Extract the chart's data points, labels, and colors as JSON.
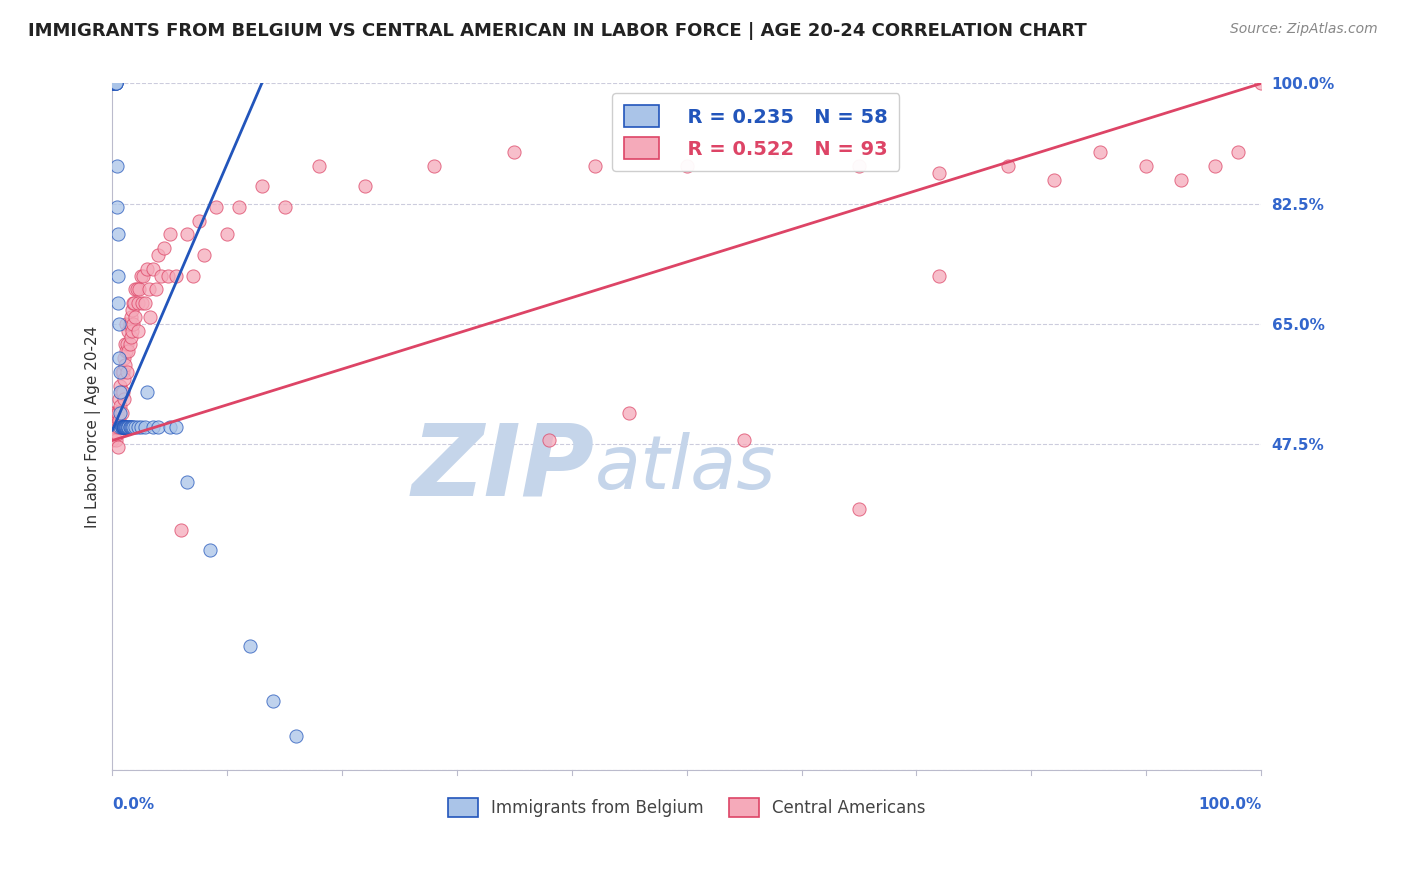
{
  "title": "IMMIGRANTS FROM BELGIUM VS CENTRAL AMERICAN IN LABOR FORCE | AGE 20-24 CORRELATION CHART",
  "source": "Source: ZipAtlas.com",
  "ylabel": "In Labor Force | Age 20-24",
  "watermark": "ZIPatlas",
  "legend_r1": "R = 0.235",
  "legend_n1": "N = 58",
  "legend_r2": "R = 0.522",
  "legend_n2": "N = 93",
  "label1": "Immigrants from Belgium",
  "label2": "Central Americans",
  "color_belgium": "#aac4e8",
  "color_central": "#f5aaba",
  "line_color_belgium": "#2255bb",
  "line_color_central": "#dd4466",
  "bg_color": "#ffffff",
  "grid_color": "#ccccdd",
  "title_fontsize": 13,
  "axis_label_fontsize": 11,
  "tick_fontsize": 11,
  "legend_fontsize": 14,
  "watermark_fontsize": 72,
  "source_fontsize": 10,
  "marker_size": 90,
  "y_ticks": [
    0.0,
    0.475,
    0.65,
    0.825,
    1.0
  ],
  "y_tick_labels": [
    "",
    "47.5%",
    "65.0%",
    "82.5%",
    "100.0%"
  ],
  "xlim": [
    0.0,
    1.0
  ],
  "ylim": [
    0.0,
    1.0
  ],
  "bel_x": [
    0.0,
    0.0,
    0.0,
    0.0,
    0.0,
    0.002,
    0.002,
    0.003,
    0.003,
    0.003,
    0.003,
    0.004,
    0.004,
    0.005,
    0.005,
    0.005,
    0.006,
    0.006,
    0.007,
    0.007,
    0.007,
    0.007,
    0.008,
    0.008,
    0.008,
    0.009,
    0.009,
    0.01,
    0.01,
    0.01,
    0.01,
    0.01,
    0.011,
    0.011,
    0.012,
    0.012,
    0.013,
    0.014,
    0.014,
    0.015,
    0.015,
    0.016,
    0.017,
    0.018,
    0.02,
    0.022,
    0.025,
    0.028,
    0.03,
    0.035,
    0.04,
    0.05,
    0.055,
    0.065,
    0.085,
    0.12,
    0.14,
    0.16
  ],
  "bel_y": [
    1.0,
    1.0,
    1.0,
    1.0,
    1.0,
    1.0,
    1.0,
    1.0,
    1.0,
    1.0,
    1.0,
    0.88,
    0.82,
    0.78,
    0.72,
    0.68,
    0.65,
    0.6,
    0.58,
    0.55,
    0.52,
    0.5,
    0.5,
    0.5,
    0.5,
    0.5,
    0.5,
    0.5,
    0.5,
    0.5,
    0.5,
    0.5,
    0.5,
    0.5,
    0.5,
    0.5,
    0.5,
    0.5,
    0.5,
    0.5,
    0.5,
    0.5,
    0.5,
    0.5,
    0.5,
    0.5,
    0.5,
    0.5,
    0.55,
    0.5,
    0.5,
    0.5,
    0.5,
    0.42,
    0.32,
    0.18,
    0.1,
    0.05
  ],
  "cen_x": [
    0.0,
    0.0,
    0.0,
    0.002,
    0.003,
    0.003,
    0.004,
    0.004,
    0.005,
    0.005,
    0.005,
    0.006,
    0.006,
    0.007,
    0.007,
    0.008,
    0.008,
    0.008,
    0.009,
    0.009,
    0.01,
    0.01,
    0.01,
    0.011,
    0.011,
    0.012,
    0.012,
    0.013,
    0.013,
    0.014,
    0.014,
    0.015,
    0.015,
    0.016,
    0.016,
    0.017,
    0.017,
    0.018,
    0.018,
    0.019,
    0.02,
    0.02,
    0.021,
    0.022,
    0.022,
    0.023,
    0.025,
    0.026,
    0.027,
    0.028,
    0.03,
    0.032,
    0.033,
    0.035,
    0.038,
    0.04,
    0.042,
    0.045,
    0.048,
    0.05,
    0.055,
    0.06,
    0.065,
    0.07,
    0.075,
    0.08,
    0.09,
    0.1,
    0.11,
    0.13,
    0.15,
    0.18,
    0.22,
    0.28,
    0.35,
    0.42,
    0.5,
    0.58,
    0.65,
    0.72,
    0.78,
    0.82,
    0.86,
    0.9,
    0.93,
    0.96,
    0.98,
    1.0,
    0.72,
    0.65,
    0.55,
    0.45,
    0.38
  ],
  "cen_y": [
    0.52,
    0.5,
    0.48,
    0.52,
    0.5,
    0.48,
    0.52,
    0.49,
    0.52,
    0.5,
    0.47,
    0.54,
    0.51,
    0.56,
    0.53,
    0.58,
    0.55,
    0.52,
    0.58,
    0.55,
    0.6,
    0.57,
    0.54,
    0.62,
    0.59,
    0.65,
    0.61,
    0.62,
    0.58,
    0.64,
    0.61,
    0.65,
    0.62,
    0.66,
    0.63,
    0.67,
    0.64,
    0.68,
    0.65,
    0.68,
    0.7,
    0.66,
    0.7,
    0.68,
    0.64,
    0.7,
    0.72,
    0.68,
    0.72,
    0.68,
    0.73,
    0.7,
    0.66,
    0.73,
    0.7,
    0.75,
    0.72,
    0.76,
    0.72,
    0.78,
    0.72,
    0.35,
    0.78,
    0.72,
    0.8,
    0.75,
    0.82,
    0.78,
    0.82,
    0.85,
    0.82,
    0.88,
    0.85,
    0.88,
    0.9,
    0.88,
    0.88,
    0.9,
    0.88,
    0.87,
    0.88,
    0.86,
    0.9,
    0.88,
    0.86,
    0.88,
    0.9,
    1.0,
    0.72,
    0.38,
    0.48,
    0.52,
    0.48
  ]
}
